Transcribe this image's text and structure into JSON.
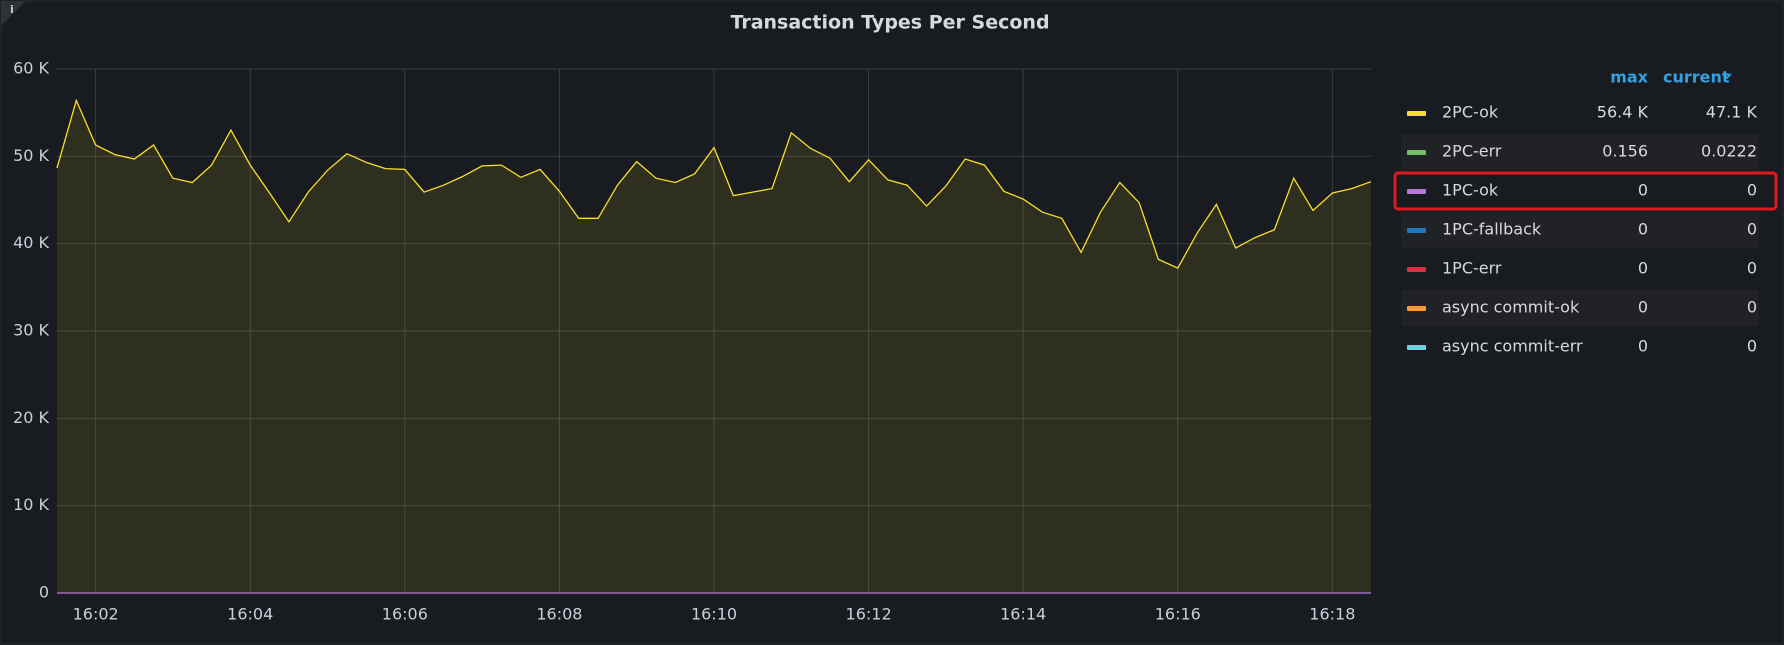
{
  "chart_data": {
    "type": "line",
    "title": "Transaction Types Per Second",
    "x": [
      961.5,
      961.75,
      962,
      962.25,
      962.5,
      962.75,
      963,
      963.25,
      963.5,
      963.75,
      964,
      964.25,
      964.5,
      964.75,
      965,
      965.25,
      965.5,
      965.75,
      966,
      966.25,
      966.5,
      966.75,
      967,
      967.25,
      967.5,
      967.75,
      968,
      968.25,
      968.5,
      968.75,
      969,
      969.25,
      969.5,
      969.75,
      970,
      970.25,
      970.5,
      970.75,
      971,
      971.25,
      971.5,
      971.75,
      972,
      972.25,
      972.5,
      972.75,
      973,
      973.25,
      973.5,
      973.75,
      974,
      974.25,
      974.5,
      974.75,
      975,
      975.25,
      975.5,
      975.75,
      976,
      976.25,
      976.5,
      976.75,
      977,
      977.25,
      977.5,
      977.75,
      978,
      978.25,
      978.5
    ],
    "xlim": [
      961.5,
      978.5
    ],
    "xticks": [
      {
        "value": 962,
        "label": "16:02"
      },
      {
        "value": 964,
        "label": "16:04"
      },
      {
        "value": 966,
        "label": "16:06"
      },
      {
        "value": 968,
        "label": "16:08"
      },
      {
        "value": 970,
        "label": "16:10"
      },
      {
        "value": 972,
        "label": "16:12"
      },
      {
        "value": 974,
        "label": "16:14"
      },
      {
        "value": 976,
        "label": "16:16"
      },
      {
        "value": 978,
        "label": "16:18"
      }
    ],
    "ylim": [
      0,
      60000
    ],
    "yticks": [
      {
        "value": 0,
        "label": "0"
      },
      {
        "value": 10000,
        "label": "10 K"
      },
      {
        "value": 20000,
        "label": "20 K"
      },
      {
        "value": 30000,
        "label": "30 K"
      },
      {
        "value": 40000,
        "label": "40 K"
      },
      {
        "value": 50000,
        "label": "50 K"
      },
      {
        "value": 60000,
        "label": "60 K"
      }
    ],
    "grid": true,
    "legend_columns": [
      "max",
      "current"
    ],
    "series": [
      {
        "name": "2PC-ok",
        "color": "#fade2a",
        "stats": [
          56400,
          47100
        ],
        "stat_labels": [
          "56.4 K",
          "47.1 K"
        ],
        "values": [
          48650,
          56400,
          51300,
          50200,
          49700,
          51300,
          47500,
          47000,
          49000,
          53000,
          49000,
          45800,
          42500,
          45900,
          48400,
          50300,
          49300,
          48600,
          48500,
          45900,
          46700,
          47700,
          48900,
          49000,
          47600,
          48500,
          46000,
          42900,
          42900,
          46700,
          49400,
          47500,
          47000,
          48000,
          51000,
          45500,
          45900,
          46300,
          52700,
          50900,
          49800,
          47100,
          49600,
          47300,
          46700,
          44300,
          46600,
          49700,
          49000,
          46000,
          45100,
          43600,
          42900,
          39000,
          43600,
          47000,
          44700,
          38200,
          37200,
          41200,
          44500,
          39500,
          40700,
          41600,
          47500,
          43800,
          45800,
          46300,
          47100
        ]
      },
      {
        "name": "2PC-err",
        "color": "#73bf69",
        "stats": [
          0.156,
          0.0222
        ]
      },
      {
        "name": "1PC-ok",
        "color": "#b877d9",
        "stats": [
          0,
          0
        ],
        "values": [
          0,
          0,
          0,
          0,
          0,
          0,
          0,
          0,
          0,
          0,
          0,
          0,
          0,
          0,
          0,
          0,
          0,
          0,
          0,
          0,
          0,
          0,
          0,
          0,
          0,
          0,
          0,
          0,
          0,
          0,
          0,
          0,
          0,
          0,
          0,
          0,
          0,
          0,
          0,
          0,
          0,
          0,
          0,
          0,
          0,
          0,
          0,
          0,
          0,
          0,
          0,
          0,
          0,
          0,
          0,
          0,
          0,
          0,
          0,
          0,
          0,
          0,
          0,
          0,
          0,
          0,
          0,
          0,
          0
        ]
      },
      {
        "name": "1PC-fallback",
        "color": "#1f78c1",
        "stats": [
          0,
          0
        ]
      },
      {
        "name": "1PC-err",
        "color": "#e02f44",
        "stats": [
          0,
          0
        ]
      },
      {
        "name": "async commit-ok",
        "color": "#ff9830",
        "stats": [
          0,
          0
        ]
      },
      {
        "name": "async commit-err",
        "color": "#6ed0e0",
        "stats": [
          0,
          0
        ]
      }
    ]
  }
}
